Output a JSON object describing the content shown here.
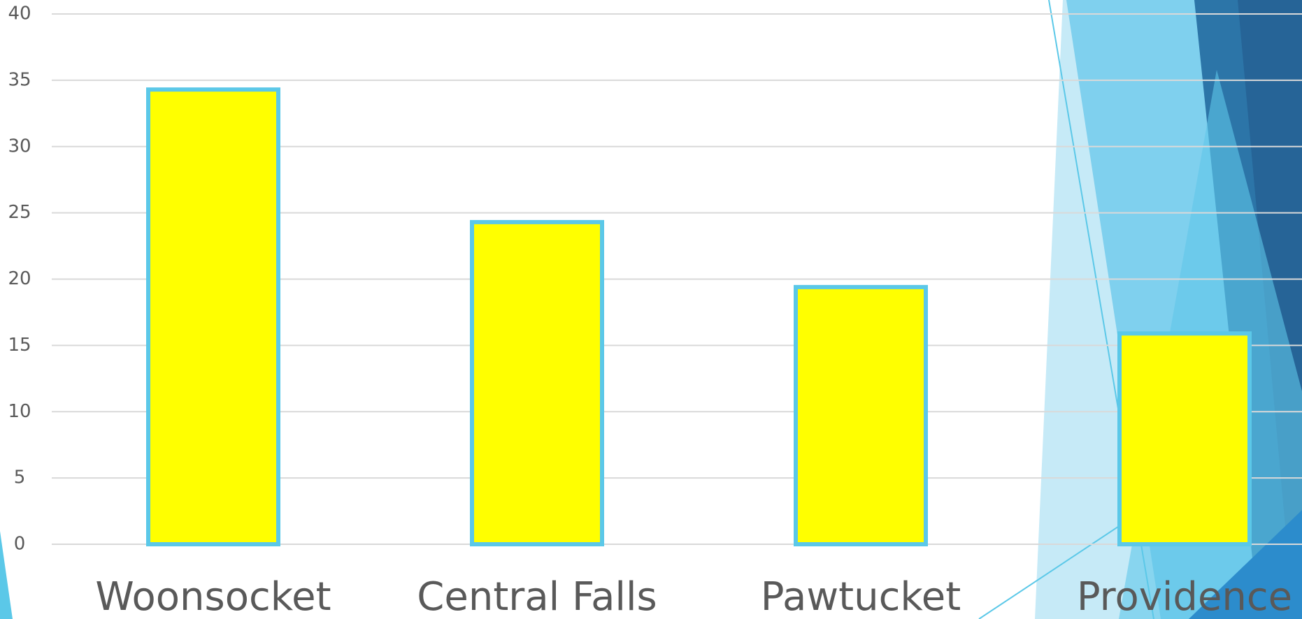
{
  "chart_data": {
    "type": "bar",
    "categories": [
      "Woonsocket",
      "Central Falls",
      "Pawtucket",
      "Providence"
    ],
    "values": [
      34.3,
      24.3,
      19.4,
      15.9
    ],
    "color": "#ffff00",
    "edgecolor": "#5bc8e8",
    "ylim": [
      0,
      40
    ],
    "yticks": [
      0,
      5,
      10,
      15,
      20,
      25,
      30,
      35,
      40
    ],
    "grid": true
  }
}
